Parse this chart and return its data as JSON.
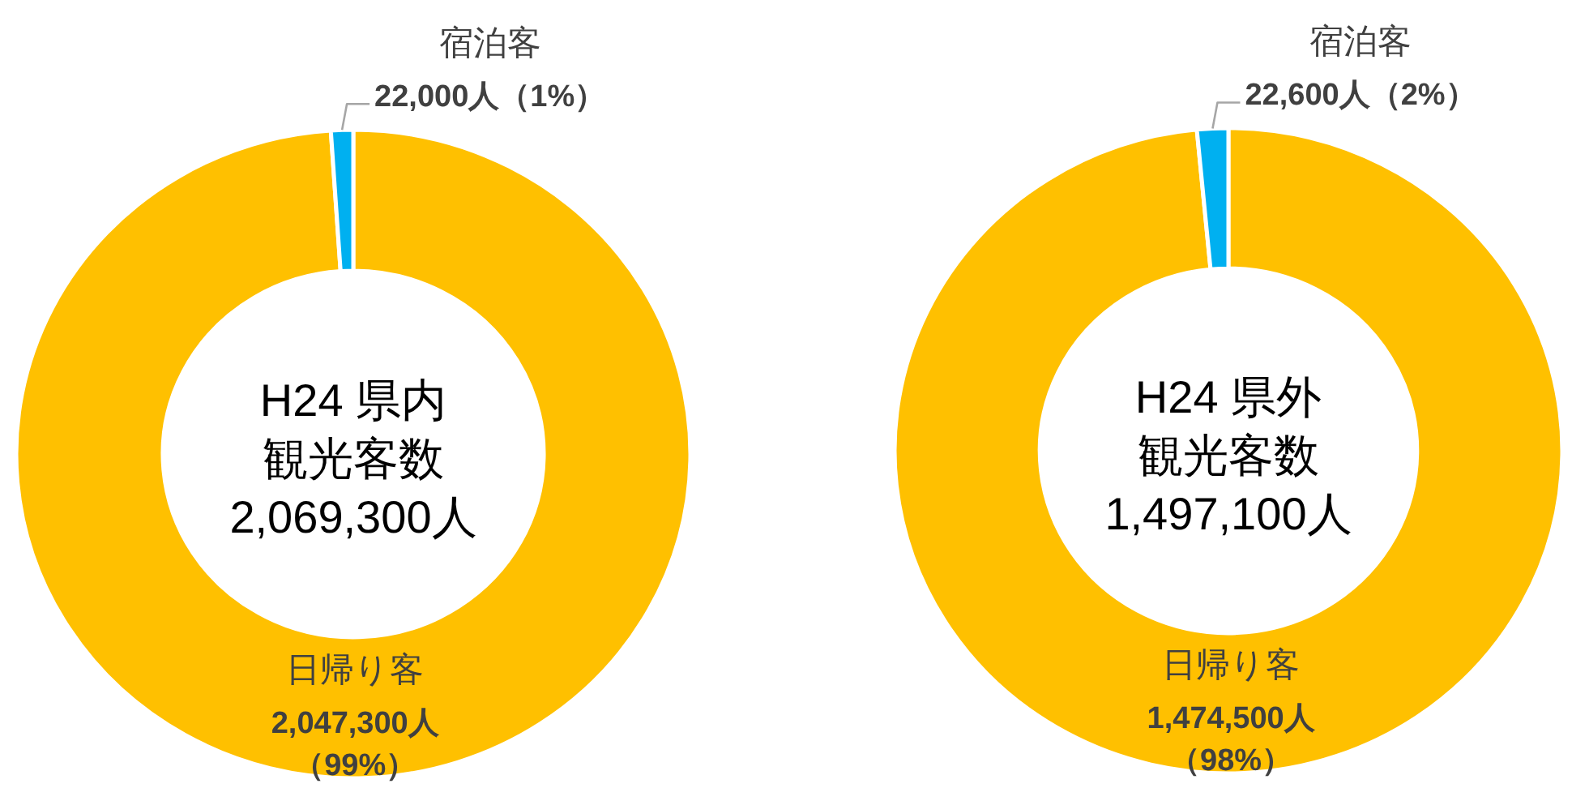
{
  "chart_data": [
    {
      "type": "donut",
      "title": "H24 県内観光客数",
      "subtitle": "2,069,300人",
      "categories": [
        "日帰り客",
        "宿泊客"
      ],
      "values": [
        2047300,
        22000
      ],
      "colors": [
        "#ffc000",
        "#00b0f0"
      ],
      "value_labels": [
        "2,047,300人（99%）",
        "22,000人（1%）"
      ]
    },
    {
      "type": "donut",
      "title": "H24 県外観光客数",
      "subtitle": "1,497,100人",
      "categories": [
        "日帰り客",
        "宿泊客"
      ],
      "values": [
        1474500,
        22600
      ],
      "colors": [
        "#ffc000",
        "#00b0f0"
      ],
      "value_labels": [
        "1,474,500人（98%）",
        "22,600人（2%）"
      ]
    }
  ]
}
